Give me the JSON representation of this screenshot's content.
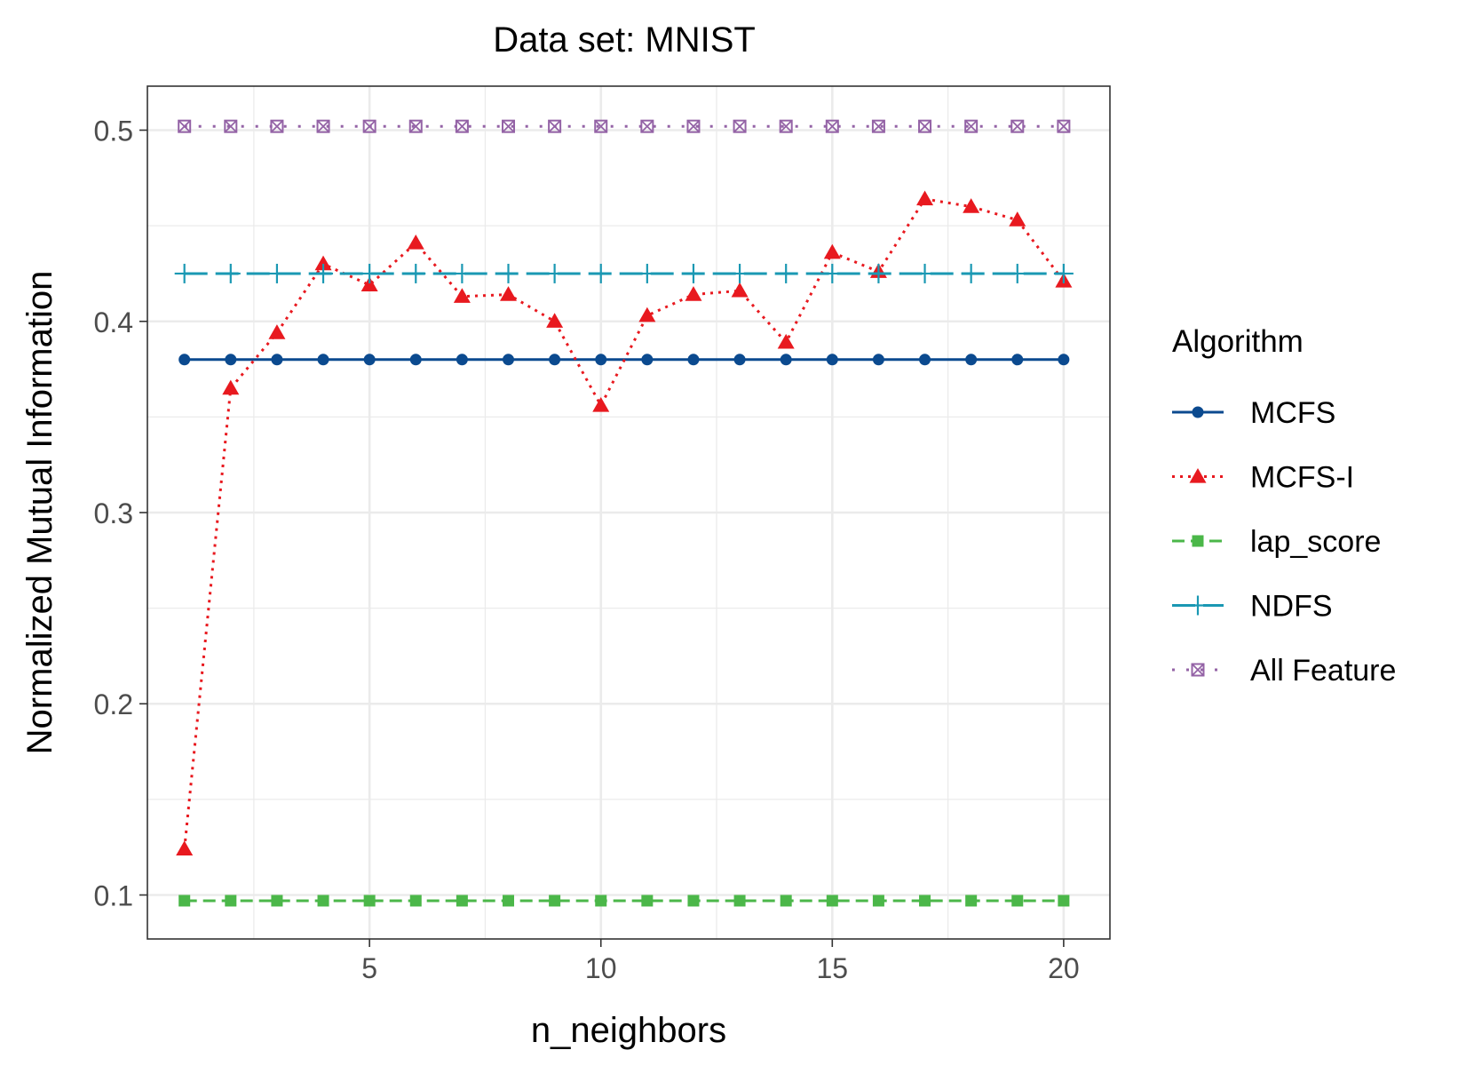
{
  "chart_data": {
    "type": "line",
    "title": "Data set: MNIST",
    "xlabel": "n_neighbors",
    "ylabel": "Normalized Mutual Information",
    "xlim": [
      0.2,
      21.0
    ],
    "ylim": [
      0.077,
      0.523
    ],
    "xticks": [
      5,
      10,
      15,
      20
    ],
    "yticks": [
      0.1,
      0.2,
      0.3,
      0.4,
      0.5
    ],
    "ytick_labels": [
      "0.1",
      "0.2",
      "0.3",
      "0.4",
      "0.5"
    ],
    "grid": true,
    "legend": {
      "title": "Algorithm",
      "position": "right"
    },
    "x": [
      1,
      2,
      3,
      4,
      5,
      6,
      7,
      8,
      9,
      10,
      11,
      12,
      13,
      14,
      15,
      16,
      17,
      18,
      19,
      20
    ],
    "series": [
      {
        "name": "MCFS",
        "color": "#0b4a8f",
        "line": "solid",
        "marker": "circle",
        "values": [
          0.38,
          0.38,
          0.38,
          0.38,
          0.38,
          0.38,
          0.38,
          0.38,
          0.38,
          0.38,
          0.38,
          0.38,
          0.38,
          0.38,
          0.38,
          0.38,
          0.38,
          0.38,
          0.38,
          0.38
        ]
      },
      {
        "name": "MCFS-I",
        "color": "#e8191f",
        "line": "dotted",
        "marker": "triangle",
        "values": [
          0.124,
          0.365,
          0.394,
          0.43,
          0.419,
          0.441,
          0.413,
          0.414,
          0.4,
          0.356,
          0.403,
          0.414,
          0.416,
          0.389,
          0.436,
          0.426,
          0.464,
          0.46,
          0.453,
          0.421
        ]
      },
      {
        "name": "lap_score",
        "color": "#4bb749",
        "line": "dashed",
        "marker": "square",
        "values": [
          0.097,
          0.097,
          0.097,
          0.097,
          0.097,
          0.097,
          0.097,
          0.097,
          0.097,
          0.097,
          0.097,
          0.097,
          0.097,
          0.097,
          0.097,
          0.097,
          0.097,
          0.097,
          0.097,
          0.097
        ]
      },
      {
        "name": "NDFS",
        "color": "#1a98b3",
        "line": "longdash",
        "marker": "plus",
        "values": [
          0.425,
          0.425,
          0.425,
          0.425,
          0.425,
          0.425,
          0.425,
          0.425,
          0.425,
          0.425,
          0.425,
          0.425,
          0.425,
          0.425,
          0.425,
          0.425,
          0.425,
          0.425,
          0.425,
          0.425
        ]
      },
      {
        "name": "All Feature",
        "color": "#9463a6",
        "line": "dotted-sparse",
        "marker": "square-x",
        "values": [
          0.502,
          0.502,
          0.502,
          0.502,
          0.502,
          0.502,
          0.502,
          0.502,
          0.502,
          0.502,
          0.502,
          0.502,
          0.502,
          0.502,
          0.502,
          0.502,
          0.502,
          0.502,
          0.502,
          0.502
        ]
      }
    ]
  }
}
